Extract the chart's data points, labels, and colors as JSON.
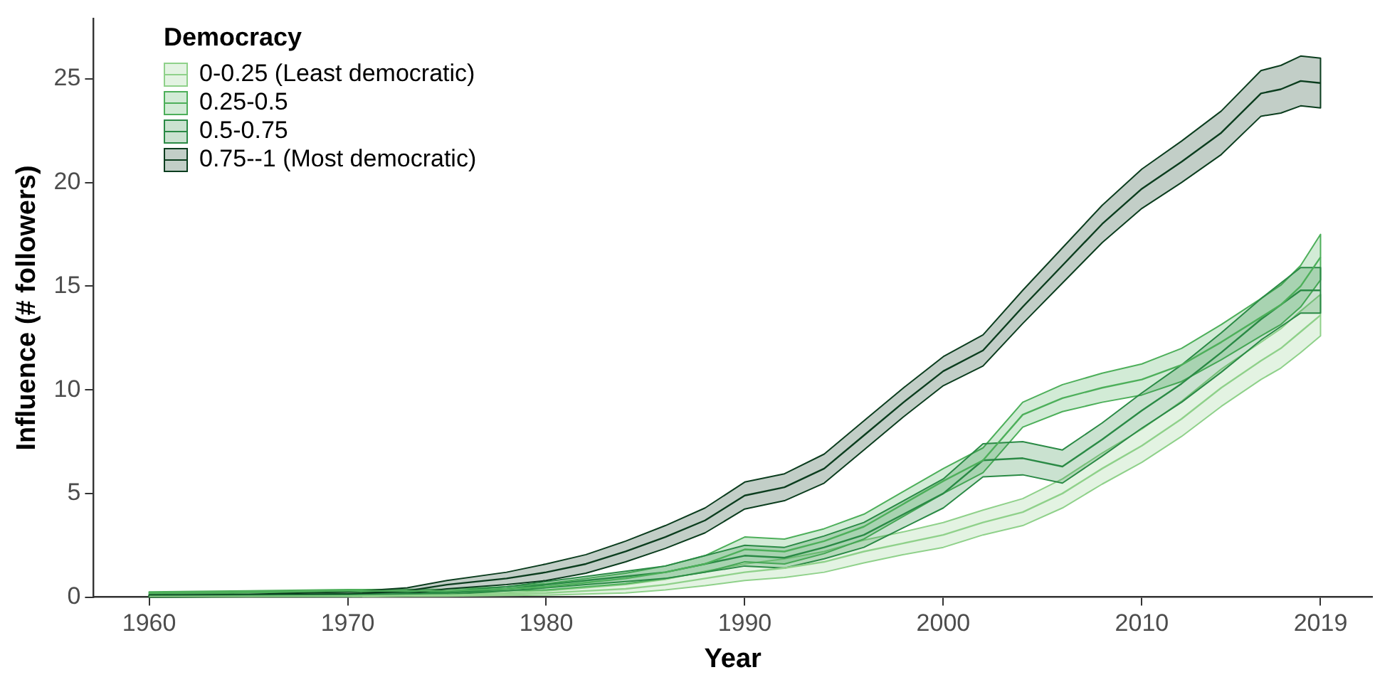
{
  "chart_data": {
    "type": "line",
    "xlabel": "Year",
    "ylabel": "Influence (# followers)",
    "legend_title": "Democracy",
    "legend": "top left",
    "grid": false,
    "x": [
      1960,
      1965,
      1970,
      1973,
      1975,
      1978,
      1980,
      1982,
      1984,
      1986,
      1988,
      1990,
      1992,
      1994,
      1996,
      1998,
      2000,
      2002,
      2004,
      2006,
      2008,
      2010,
      2012,
      2014,
      2016,
      2017,
      2018,
      2019
    ],
    "xlim": [
      1957.2,
      2021.6
    ],
    "xticks": [
      1960,
      1970,
      1980,
      1990,
      2000,
      2010,
      2019
    ],
    "ylim": [
      0,
      27.9
    ],
    "yticks": [
      0,
      5,
      10,
      15,
      20,
      25
    ],
    "series": [
      {
        "name": "0-0.25 (Least democratic)",
        "color": "#8fd18a",
        "values": [
          0.02,
          0.03,
          0.05,
          0.08,
          0.1,
          0.15,
          0.2,
          0.3,
          0.4,
          0.6,
          0.9,
          1.2,
          1.4,
          1.7,
          2.2,
          2.6,
          3.0,
          3.6,
          4.1,
          5.0,
          6.2,
          7.3,
          8.6,
          10.1,
          11.4,
          12.0,
          12.8,
          13.6
        ],
        "lower": [
          0,
          0.01,
          0.02,
          0.04,
          0.05,
          0.08,
          0.1,
          0.15,
          0.2,
          0.35,
          0.55,
          0.8,
          0.95,
          1.2,
          1.65,
          2.05,
          2.4,
          3.0,
          3.45,
          4.3,
          5.45,
          6.5,
          7.75,
          9.2,
          10.5,
          11.05,
          11.8,
          12.6
        ],
        "upper": [
          0.04,
          0.05,
          0.08,
          0.12,
          0.15,
          0.22,
          0.3,
          0.45,
          0.6,
          0.85,
          1.25,
          1.6,
          1.85,
          2.2,
          2.75,
          3.15,
          3.6,
          4.2,
          4.75,
          5.7,
          6.95,
          8.1,
          9.45,
          11.0,
          12.3,
          12.95,
          13.8,
          14.6
        ]
      },
      {
        "name": "0.25-0.5",
        "color": "#4daf5a",
        "values": [
          0.2,
          0.25,
          0.3,
          0.3,
          0.3,
          0.4,
          0.5,
          0.7,
          0.9,
          1.2,
          1.6,
          2.3,
          2.2,
          2.7,
          3.4,
          4.5,
          5.6,
          6.6,
          8.8,
          9.6,
          10.1,
          10.5,
          11.2,
          12.3,
          13.5,
          14.1,
          15.0,
          16.4
        ],
        "lower": [
          0.15,
          0.2,
          0.24,
          0.23,
          0.22,
          0.3,
          0.35,
          0.5,
          0.65,
          0.9,
          1.2,
          1.7,
          1.6,
          2.1,
          2.8,
          3.9,
          5.0,
          6.0,
          8.2,
          8.95,
          9.4,
          9.75,
          10.4,
          11.45,
          12.6,
          13.15,
          14.0,
          15.3
        ],
        "upper": [
          0.25,
          0.3,
          0.36,
          0.37,
          0.38,
          0.5,
          0.65,
          0.9,
          1.15,
          1.5,
          2.0,
          2.9,
          2.8,
          3.3,
          4.0,
          5.1,
          6.2,
          7.2,
          9.4,
          10.25,
          10.8,
          11.25,
          12.0,
          13.15,
          14.4,
          15.05,
          16.0,
          17.5
        ]
      },
      {
        "name": "0.5-0.75",
        "color": "#2a8a45",
        "values": [
          0.05,
          0.07,
          0.1,
          0.15,
          0.2,
          0.4,
          0.6,
          0.8,
          1.0,
          1.2,
          1.6,
          2.0,
          1.9,
          2.4,
          3.0,
          4.0,
          5.0,
          6.6,
          6.7,
          6.3,
          7.6,
          9.0,
          10.3,
          11.8,
          13.4,
          14.1,
          14.8,
          14.8
        ],
        "lower": [
          0,
          0.02,
          0.04,
          0.08,
          0.12,
          0.3,
          0.45,
          0.6,
          0.75,
          0.9,
          1.2,
          1.5,
          1.4,
          1.85,
          2.4,
          3.35,
          4.3,
          5.8,
          5.9,
          5.5,
          6.8,
          8.15,
          9.4,
          10.85,
          12.4,
          13.05,
          13.7,
          13.7
        ],
        "upper": [
          0.1,
          0.12,
          0.16,
          0.22,
          0.28,
          0.5,
          0.75,
          1.0,
          1.25,
          1.5,
          2.0,
          2.5,
          2.4,
          2.95,
          3.6,
          4.65,
          5.7,
          7.4,
          7.5,
          7.1,
          8.4,
          9.85,
          11.2,
          12.75,
          14.4,
          15.15,
          15.9,
          15.9
        ]
      },
      {
        "name": "0.75--1 (Most democratic)",
        "color": "#0b3d1e",
        "values": [
          0.05,
          0.08,
          0.15,
          0.3,
          0.6,
          0.9,
          1.2,
          1.6,
          2.2,
          2.9,
          3.7,
          4.9,
          5.3,
          6.2,
          7.8,
          9.4,
          10.9,
          11.9,
          14.0,
          16.0,
          18.0,
          19.7,
          21.0,
          22.4,
          24.3,
          24.5,
          24.9,
          24.8
        ],
        "lower": [
          0,
          0.03,
          0.05,
          0.15,
          0.4,
          0.6,
          0.8,
          1.15,
          1.7,
          2.35,
          3.1,
          4.25,
          4.65,
          5.5,
          7.1,
          8.7,
          10.2,
          11.15,
          13.2,
          15.15,
          17.1,
          18.75,
          20.0,
          21.35,
          23.2,
          23.35,
          23.7,
          23.6
        ],
        "upper": [
          0.1,
          0.13,
          0.25,
          0.45,
          0.8,
          1.2,
          1.6,
          2.05,
          2.7,
          3.45,
          4.3,
          5.55,
          5.95,
          6.9,
          8.5,
          10.1,
          11.6,
          12.65,
          14.8,
          16.85,
          18.9,
          20.65,
          22.0,
          23.45,
          25.4,
          25.65,
          26.1,
          26.0
        ]
      }
    ]
  }
}
